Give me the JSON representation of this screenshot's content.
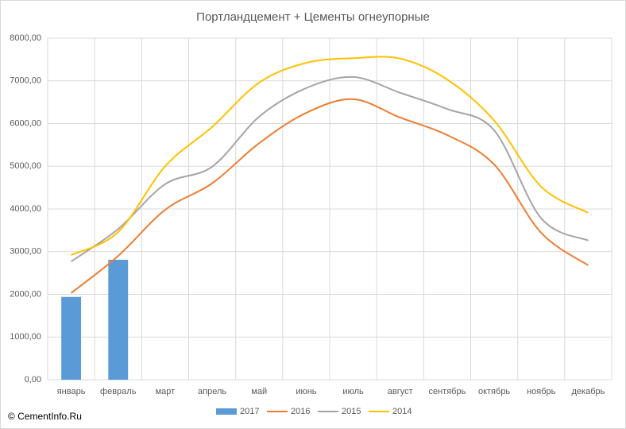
{
  "chart_data": {
    "type": "line",
    "title": "Портландцемент + Цементы огнеупорные",
    "annotation": "© CementInfo.Ru",
    "categories": [
      "январь",
      "февраль",
      "март",
      "апрель",
      "май",
      "июнь",
      "июль",
      "август",
      "сентябрь",
      "октябрь",
      "ноябрь",
      "декабрь"
    ],
    "series": [
      {
        "name": "2017",
        "type": "bar",
        "color": "#5b9bd5",
        "values": [
          1940,
          2810,
          null,
          null,
          null,
          null,
          null,
          null,
          null,
          null,
          null,
          null
        ]
      },
      {
        "name": "2016",
        "type": "line",
        "color": "#ed7d31",
        "values": [
          2030,
          2900,
          3980,
          4600,
          5540,
          6250,
          6570,
          6140,
          5730,
          5040,
          3440,
          2680
        ]
      },
      {
        "name": "2015",
        "type": "line",
        "color": "#a5a5a5",
        "values": [
          2770,
          3530,
          4580,
          4990,
          6160,
          6830,
          7090,
          6720,
          6340,
          5840,
          3780,
          3260
        ]
      },
      {
        "name": "2014",
        "type": "line",
        "color": "#ffc000",
        "values": [
          2920,
          3460,
          5000,
          5920,
          6960,
          7420,
          7530,
          7520,
          7030,
          6070,
          4520,
          3910
        ]
      }
    ],
    "ylim": [
      0,
      8000
    ],
    "yticks": [
      {
        "value": 0,
        "label": "0,00"
      },
      {
        "value": 1000,
        "label": "1000,00"
      },
      {
        "value": 2000,
        "label": "2000,00"
      },
      {
        "value": 3000,
        "label": "3000,00"
      },
      {
        "value": 4000,
        "label": "4000,00"
      },
      {
        "value": 5000,
        "label": "5000,00"
      },
      {
        "value": 6000,
        "label": "6000,00"
      },
      {
        "value": 7000,
        "label": "7000,00"
      },
      {
        "value": 8000,
        "label": "8000,00"
      }
    ],
    "grid": true,
    "legend": "bottom"
  }
}
